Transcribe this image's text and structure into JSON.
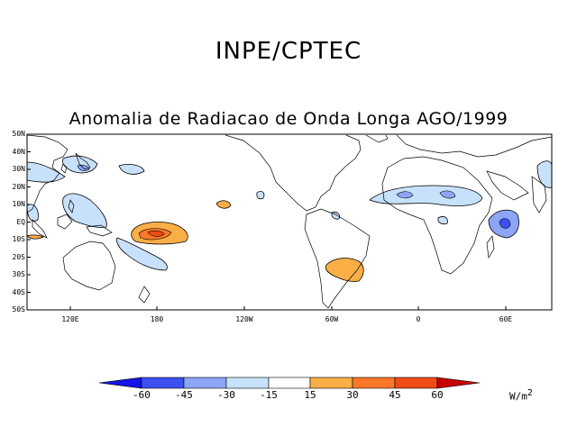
{
  "header": {
    "organization": "INPE/CPTEC",
    "map_title": "Anomalia de Radiacao de Onda Longa AGO/1999"
  },
  "axes": {
    "lat_ticks": [
      "50N",
      "40N",
      "30N",
      "20N",
      "10N",
      "EQ",
      "10S",
      "20S",
      "30S",
      "40S",
      "50S"
    ],
    "lon_ticks": [
      "120E",
      "180",
      "120W",
      "60W",
      "0",
      "60E"
    ]
  },
  "colorbar": {
    "ticks": [
      "-60",
      "-45",
      "-30",
      "-15",
      "15",
      "30",
      "45",
      "60"
    ],
    "units_base": "W/m",
    "units_exp": "2",
    "colors": {
      "lt_minus60": "#1414e6",
      "m60_m45": "#3c50f0",
      "m45_m30": "#8ca5f5",
      "m30_m15": "#c8e1fa",
      "m15_15": "#ffffff",
      "p15_p30": "#faaf46",
      "p30_p45": "#fa7828",
      "p45_p60": "#f04b14",
      "gt_60": "#c80000"
    }
  },
  "colors": {
    "land_outline": "#000000",
    "frame": "#000000"
  }
}
